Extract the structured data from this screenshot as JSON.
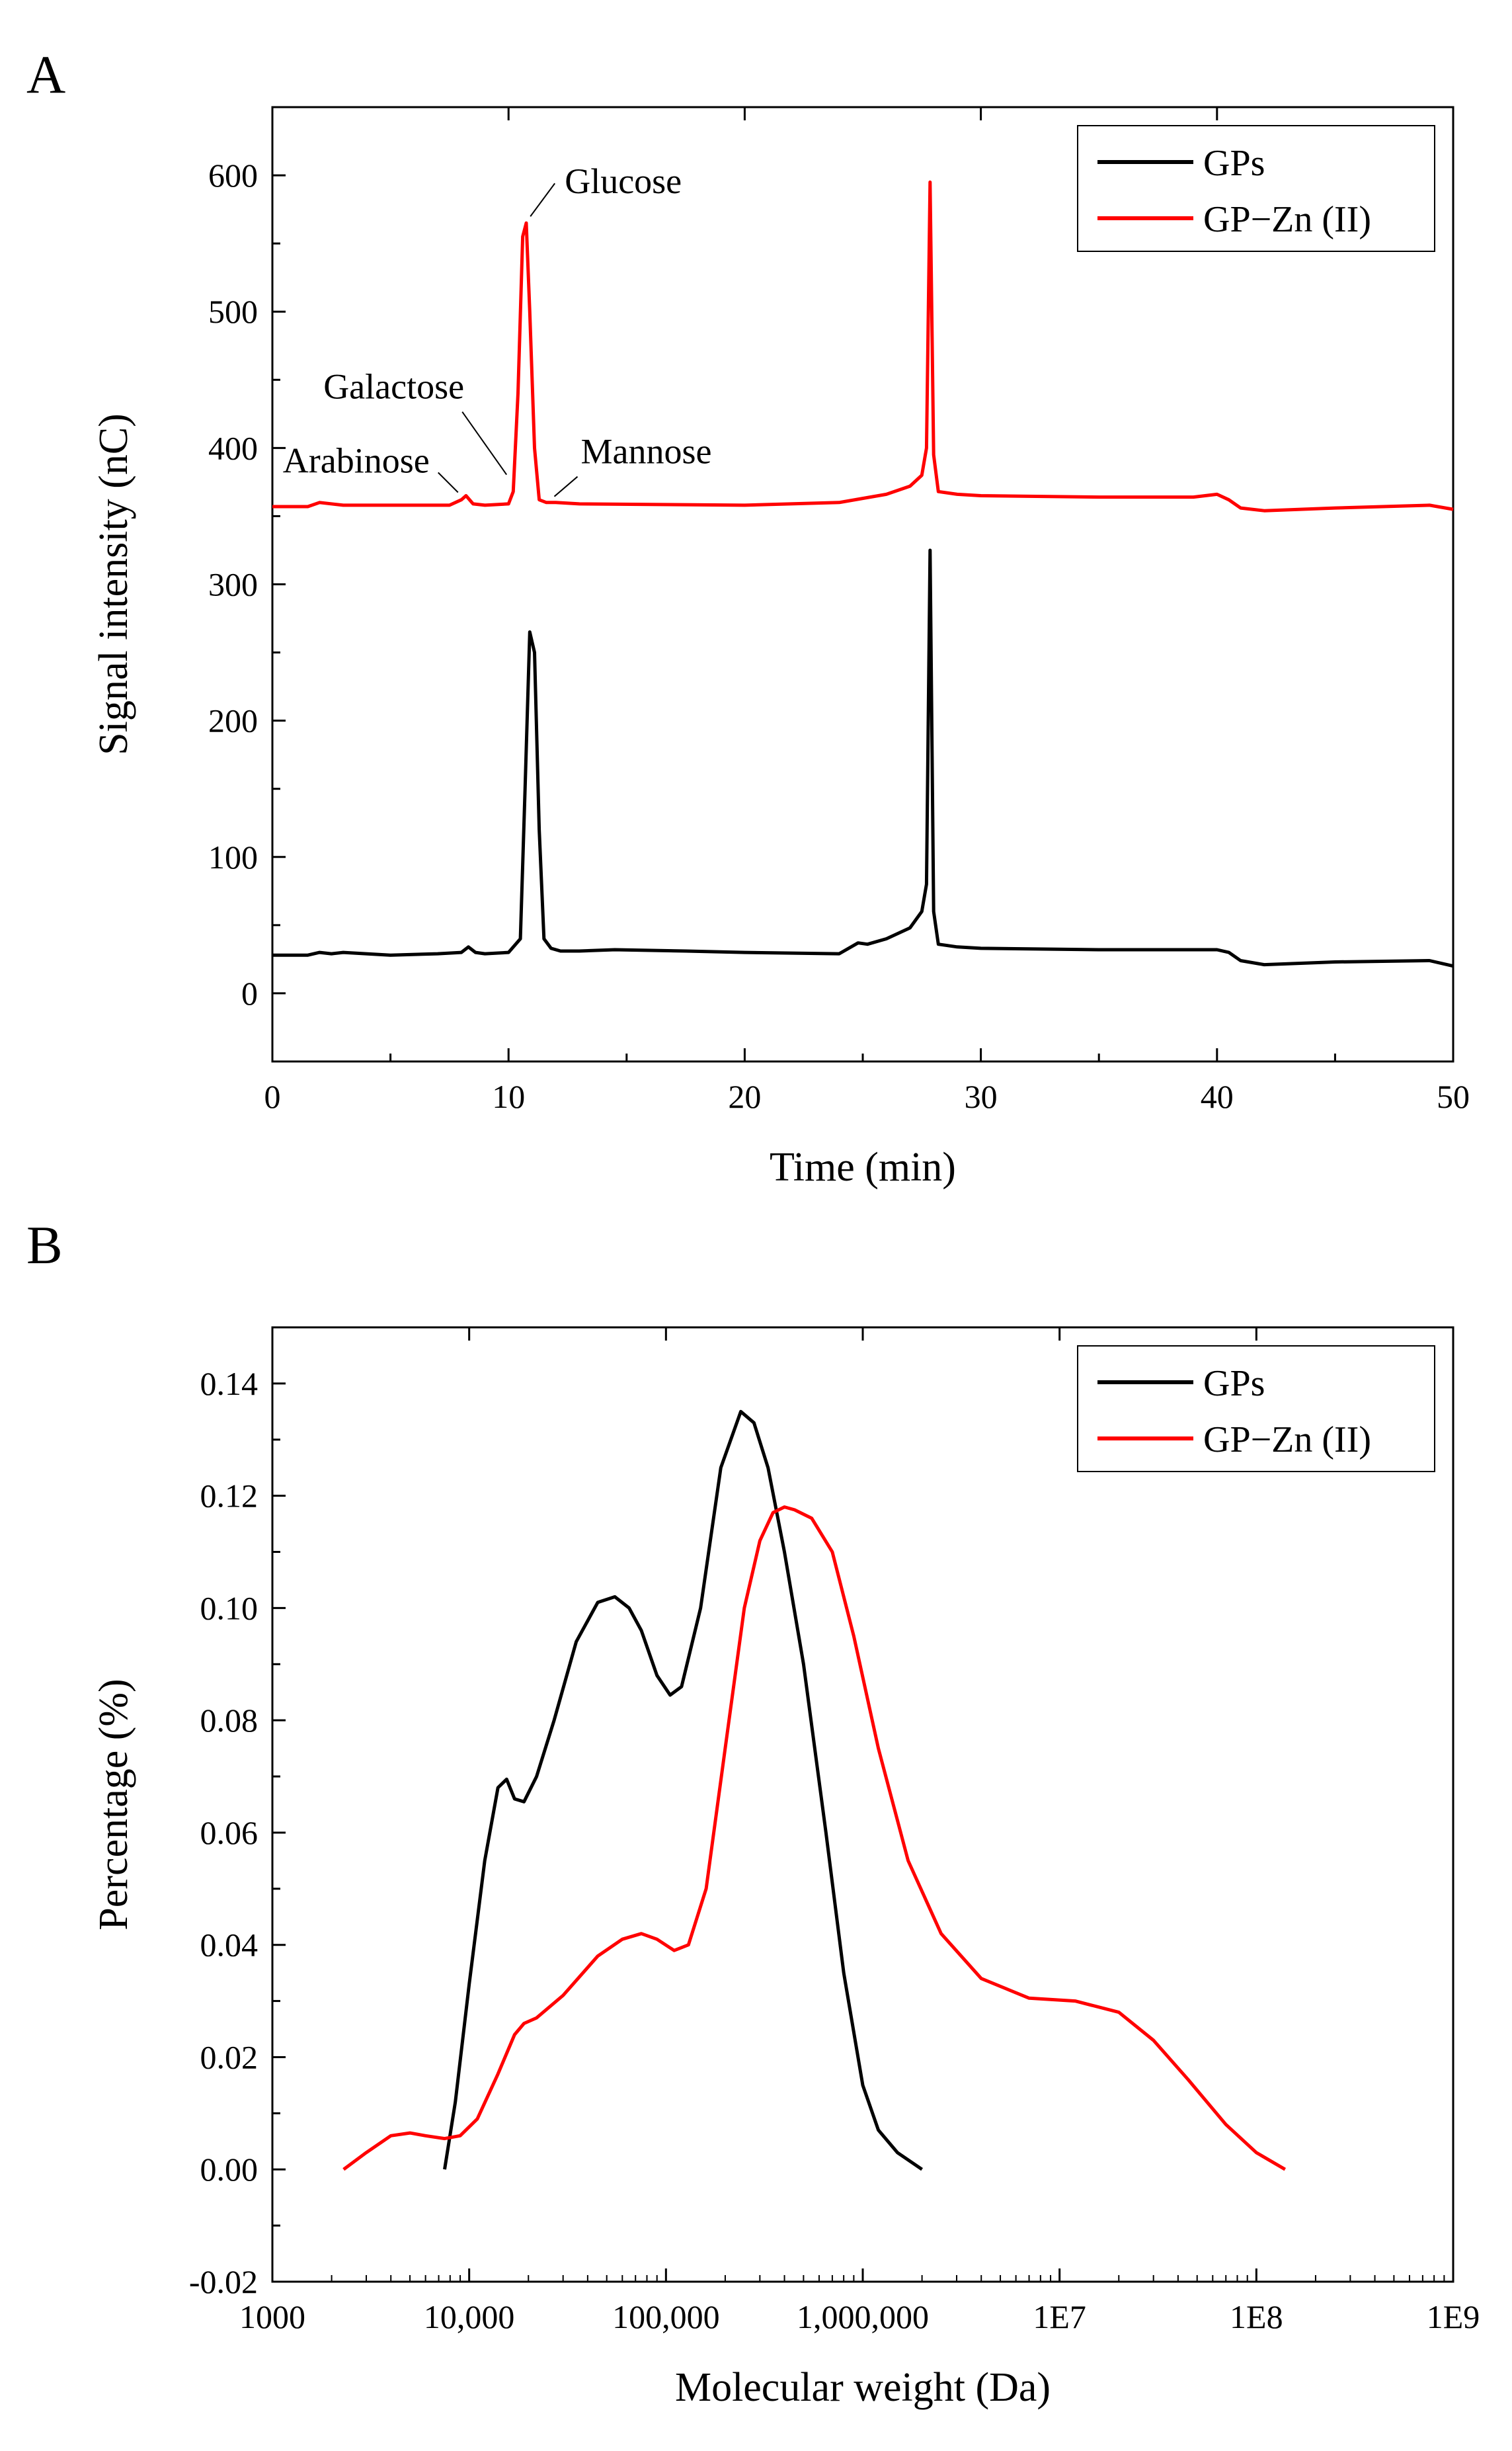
{
  "figure": {
    "panel_a_label": "A",
    "panel_b_label": "B"
  },
  "chart_data": [
    {
      "type": "line",
      "panel": "A",
      "title": "",
      "xlabel": "Time (min)",
      "ylabel": "Signal intensity (nC)",
      "xlim": [
        0,
        50
      ],
      "ylim": [
        -50,
        650
      ],
      "x_ticks": [
        0,
        10,
        20,
        30,
        40,
        50
      ],
      "y_ticks": [
        0,
        100,
        200,
        300,
        400,
        500,
        600
      ],
      "grid": false,
      "legend_position": "top-right",
      "legend": [
        {
          "label": "GPs",
          "color": "#000000"
        },
        {
          "label": "GP−Zn (II)",
          "color": "#ff0000"
        }
      ],
      "series": [
        {
          "name": "GPs",
          "color": "#000000",
          "x": [
            0,
            1.5,
            2,
            2.5,
            3,
            5,
            7,
            8,
            8.3,
            8.6,
            9,
            10,
            10.5,
            10.7,
            10.9,
            11.1,
            11.3,
            11.5,
            11.8,
            12.2,
            13,
            14.5,
            17.5,
            20,
            24,
            24.8,
            25.2,
            26,
            27,
            27.5,
            27.7,
            27.85,
            28,
            28.2,
            29,
            30,
            35,
            39,
            40,
            40.5,
            41,
            42,
            45,
            49,
            50
          ],
          "y": [
            28,
            28,
            30,
            29,
            30,
            28,
            29,
            30,
            34,
            30,
            29,
            30,
            40,
            150,
            265,
            250,
            120,
            40,
            33,
            31,
            31,
            32,
            31,
            30,
            29,
            37,
            36,
            40,
            48,
            60,
            80,
            325,
            60,
            36,
            34,
            33,
            32,
            32,
            32,
            30,
            24,
            21,
            23,
            24,
            20
          ]
        },
        {
          "name": "GP−Zn (II)",
          "color": "#ff0000",
          "x": [
            0,
            1.5,
            2,
            3,
            5,
            7.5,
            8,
            8.2,
            8.5,
            9,
            10,
            10.2,
            10.4,
            10.6,
            10.75,
            10.9,
            11.1,
            11.3,
            11.6,
            12,
            13,
            20,
            24,
            26,
            27,
            27.5,
            27.7,
            27.85,
            28,
            28.2,
            29,
            30,
            35,
            39,
            40,
            40.5,
            41,
            42,
            45,
            49,
            50
          ],
          "y": [
            357,
            357,
            360,
            358,
            358,
            358,
            362,
            365,
            359,
            358,
            359,
            368,
            440,
            555,
            565,
            500,
            400,
            362,
            360,
            360,
            359,
            358,
            360,
            366,
            372,
            380,
            400,
            595,
            395,
            368,
            366,
            365,
            364,
            364,
            366,
            362,
            356,
            354,
            356,
            358,
            355
          ]
        }
      ],
      "annotations": [
        {
          "text": "Glucose",
          "x": 10.7,
          "y": 565
        },
        {
          "text": "Galactose",
          "x": 10.0,
          "y": 378
        },
        {
          "text": "Arabinose",
          "x": 8.0,
          "y": 365
        },
        {
          "text": "Mannose",
          "x": 11.8,
          "y": 362
        }
      ]
    },
    {
      "type": "line",
      "panel": "B",
      "title": "",
      "xlabel": "Molecular weight (Da)",
      "ylabel": "Percentage (%)",
      "x_scale": "log",
      "xlim": [
        1000,
        1000000000
      ],
      "ylim": [
        -0.02,
        0.15
      ],
      "x_ticks": [
        1000,
        10000,
        100000,
        1000000,
        10000000,
        100000000,
        1000000000
      ],
      "x_tick_labels": [
        "1000",
        "10,000",
        "100,000",
        "1,000,000",
        "1E7",
        "1E8",
        "1E9"
      ],
      "y_ticks": [
        -0.02,
        0,
        0.02,
        0.04,
        0.06,
        0.08,
        0.1,
        0.12,
        0.14
      ],
      "y_tick_labels": [
        "-0.02",
        "0.00",
        "0.02",
        "0.04",
        "0.06",
        "0.08",
        "0.10",
        "0.12",
        "0.14"
      ],
      "grid": false,
      "legend_position": "top-right",
      "legend": [
        {
          "label": "GPs",
          "color": "#000000"
        },
        {
          "label": "GP−Zn (II)",
          "color": "#ff0000"
        }
      ],
      "series": [
        {
          "name": "GPs",
          "color": "#000000",
          "x": [
            7500,
            8500,
            10000,
            12000,
            14000,
            15500,
            17000,
            19000,
            22000,
            27000,
            35000,
            45000,
            55000,
            65000,
            75000,
            90000,
            105000,
            120000,
            150000,
            190000,
            240000,
            280000,
            330000,
            400000,
            500000,
            650000,
            800000,
            1000000,
            1200000,
            1500000,
            2000000
          ],
          "y": [
            0.0,
            0.012,
            0.033,
            0.055,
            0.068,
            0.0695,
            0.066,
            0.0655,
            0.07,
            0.08,
            0.094,
            0.101,
            0.102,
            0.1,
            0.096,
            0.088,
            0.0845,
            0.086,
            0.1,
            0.125,
            0.135,
            0.133,
            0.125,
            0.11,
            0.09,
            0.06,
            0.035,
            0.015,
            0.007,
            0.003,
            0.0
          ]
        },
        {
          "name": "GP−Zn (II)",
          "color": "#ff0000",
          "x": [
            2300,
            3000,
            4000,
            5000,
            6000,
            7500,
            9000,
            11000,
            14000,
            17000,
            19000,
            22000,
            30000,
            45000,
            60000,
            75000,
            90000,
            110000,
            130000,
            160000,
            200000,
            250000,
            300000,
            350000,
            400000,
            450000,
            550000,
            700000,
            900000,
            1200000,
            1700000,
            2500000,
            4000000,
            7000000,
            12000000,
            20000000,
            30000000,
            45000000,
            70000000,
            100000000,
            140000000
          ],
          "y": [
            0.0,
            0.003,
            0.006,
            0.0065,
            0.006,
            0.0055,
            0.006,
            0.009,
            0.017,
            0.024,
            0.026,
            0.027,
            0.031,
            0.038,
            0.041,
            0.042,
            0.041,
            0.039,
            0.04,
            0.05,
            0.075,
            0.1,
            0.112,
            0.117,
            0.118,
            0.1175,
            0.116,
            0.11,
            0.095,
            0.075,
            0.055,
            0.042,
            0.034,
            0.0305,
            0.03,
            0.028,
            0.023,
            0.016,
            0.008,
            0.003,
            0.0
          ]
        }
      ],
      "annotations": []
    }
  ]
}
